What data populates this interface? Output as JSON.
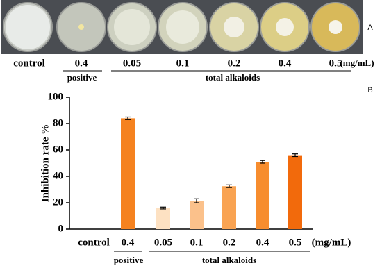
{
  "panel_a": {
    "label": "A",
    "doses": [
      "control",
      "0.4",
      "0.05",
      "0.1",
      "0.2",
      "0.4",
      "0.5"
    ],
    "unit": "(mg/mL)",
    "groups": [
      "positive",
      "total alkaloids"
    ]
  },
  "chart_data": {
    "type": "bar",
    "panel_label": "B",
    "y_label": "Inhibition rate %",
    "categories": [
      "control",
      "0.4",
      "0.05",
      "0.1",
      "0.2",
      "0.4",
      "0.5"
    ],
    "values": [
      0,
      84,
      16,
      21.5,
      32.5,
      51,
      56
    ],
    "errors": [
      null,
      1,
      0.7,
      1.5,
      1,
      1,
      1
    ],
    "colors": [
      "#f5821f",
      "#f5821f",
      "#fde1c2",
      "#fbc18b",
      "#f9a352",
      "#f78d2e",
      "#f26a0c"
    ],
    "ylim": [
      0,
      100
    ],
    "yticks": [
      0,
      20,
      40,
      60,
      80,
      100
    ],
    "unit": "(mg/mL)",
    "groups": [
      "positive",
      "total alkaloids"
    ]
  }
}
